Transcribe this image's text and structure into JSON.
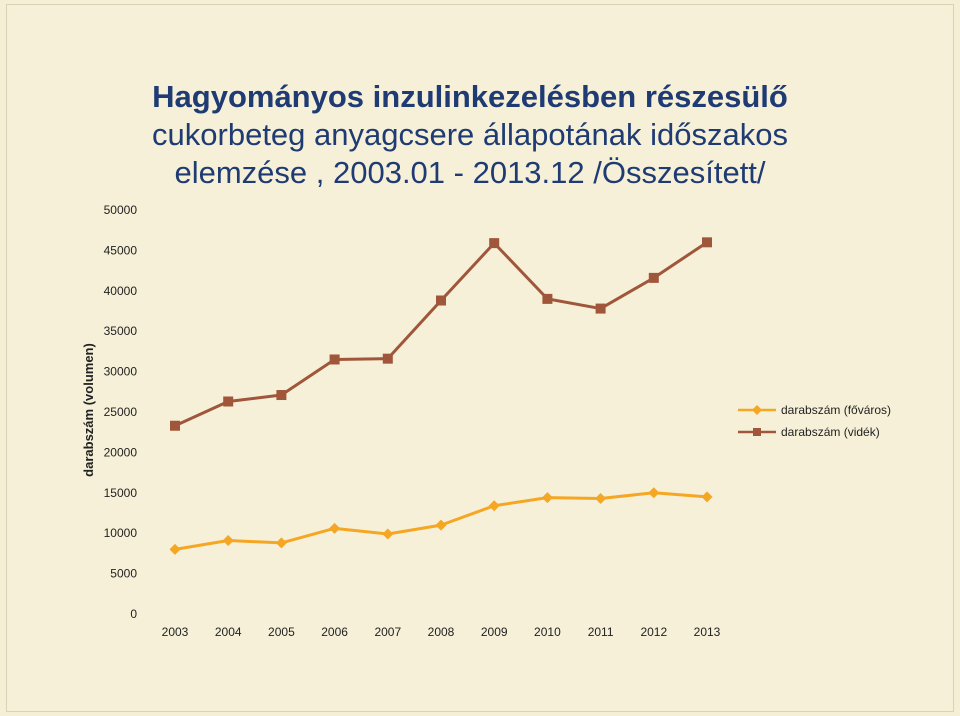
{
  "chart_data": {
    "type": "line",
    "title_line1": "Hagyományos inzulinkezelésben részesülő",
    "title_line2": "cukorbeteg anyagcsere állapotának időszakos",
    "title_line3": "elemzése , 2003.01 - 2013.12 /Összesített/",
    "ylabel": "darabszám (volumen)",
    "xlabel": "",
    "ylim": [
      0,
      50000
    ],
    "yticks": [
      0,
      5000,
      10000,
      15000,
      20000,
      25000,
      30000,
      35000,
      40000,
      45000,
      50000
    ],
    "categories": [
      "2003",
      "2004",
      "2005",
      "2006",
      "2007",
      "2008",
      "2009",
      "2010",
      "2011",
      "2012",
      "2013"
    ],
    "series": [
      {
        "name": "darabszám (főváros)",
        "color": "#f5a623",
        "marker": "diamond",
        "values": [
          8000,
          9100,
          8800,
          10600,
          9900,
          11000,
          13400,
          14400,
          14300,
          15000,
          14500
        ]
      },
      {
        "name": "darabszám (vidék)",
        "color": "#a0563a",
        "marker": "square",
        "values": [
          23300,
          26300,
          27100,
          31500,
          31600,
          38800,
          45900,
          39000,
          37800,
          41600,
          46000
        ]
      }
    ],
    "legend": "right",
    "grid": false
  }
}
